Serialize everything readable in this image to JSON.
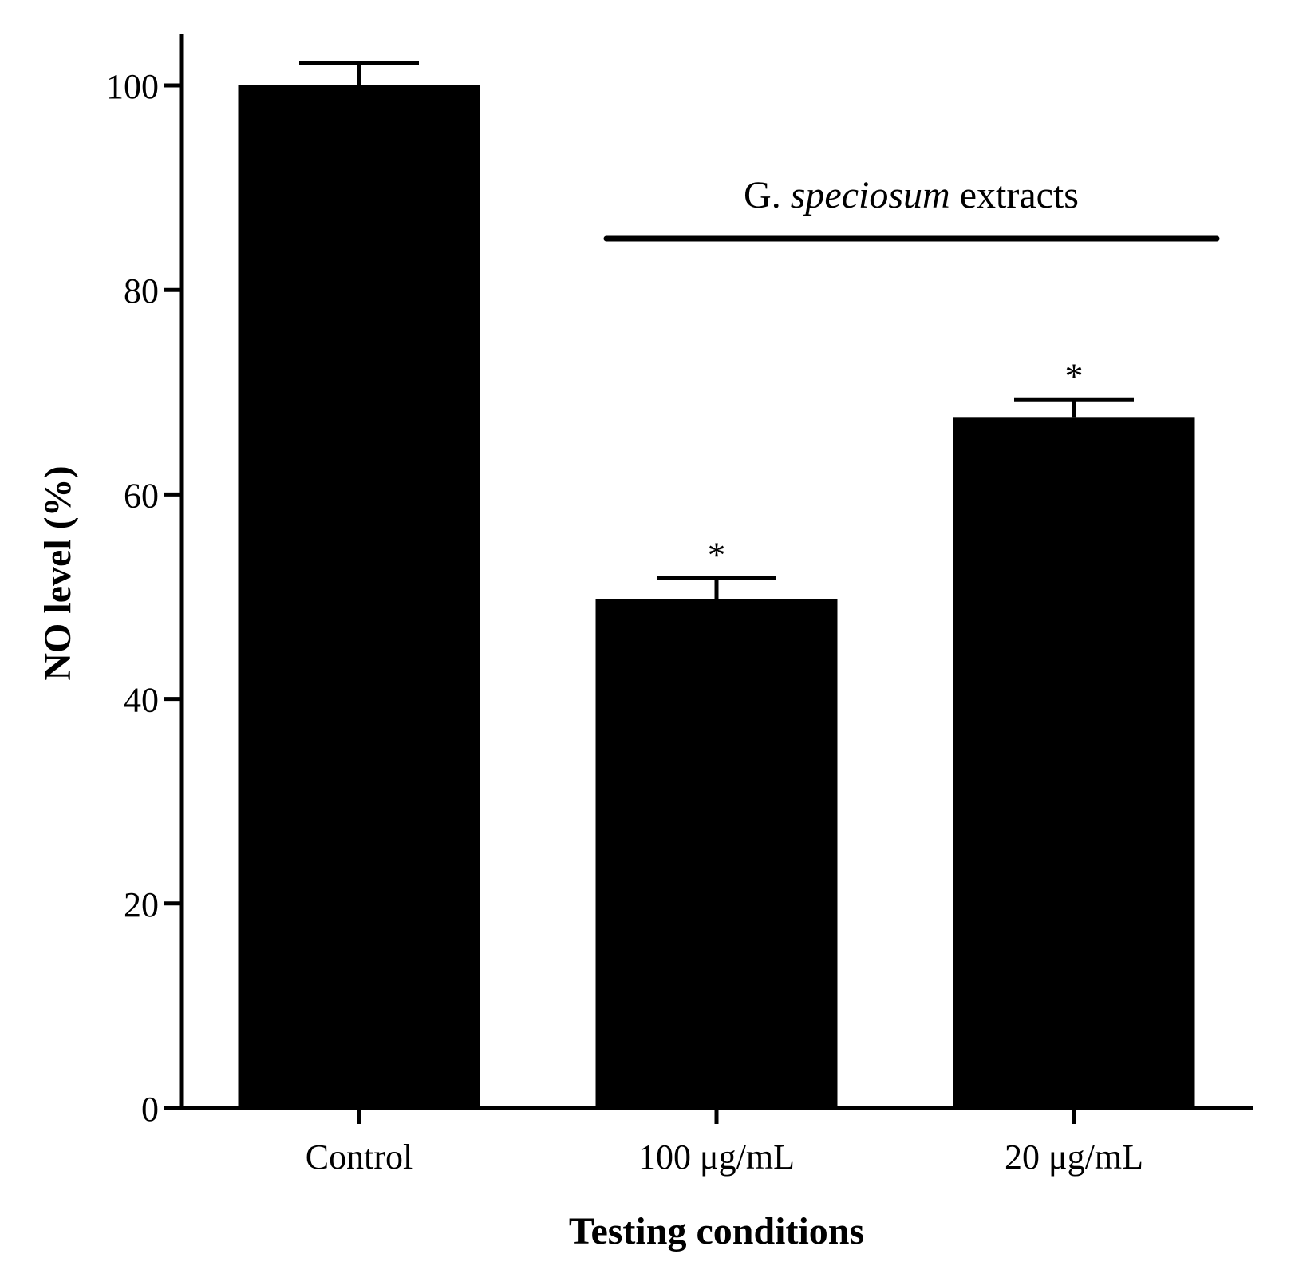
{
  "chart_data": {
    "type": "bar",
    "categories": [
      "Control",
      "100 μg/mL",
      "20 μg/mL"
    ],
    "values": [
      100,
      49.8,
      67.5
    ],
    "errors": [
      2.2,
      2.0,
      1.8
    ],
    "significance": [
      "",
      "*",
      "*"
    ],
    "xlabel": "Testing conditions",
    "ylabel": "NO level (%)",
    "ylim": [
      0,
      105
    ],
    "yticks": [
      0,
      20,
      40,
      60,
      80,
      100
    ],
    "grid": false,
    "bar_color": "#000000",
    "annotation": {
      "prefix": "G. ",
      "italic": "speciosum",
      "suffix": " extracts",
      "spans_categories": [
        "100 μg/mL",
        "20 μg/mL"
      ]
    }
  }
}
